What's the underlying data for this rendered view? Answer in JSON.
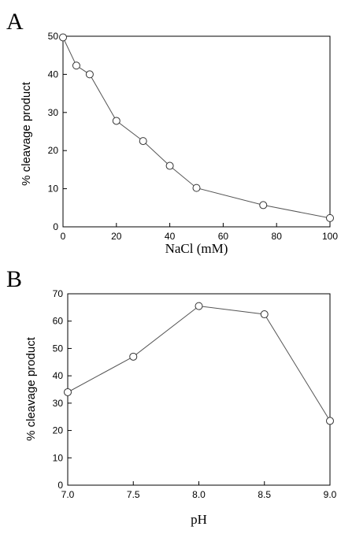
{
  "chart_data": [
    {
      "panel": "A",
      "type": "line",
      "xlabel": "NaCl (mM)",
      "ylabel": "% cleavage product",
      "xlim": [
        0,
        100
      ],
      "ylim": [
        0,
        50
      ],
      "xticks": [
        0,
        20,
        40,
        60,
        80,
        100
      ],
      "yticks": [
        0,
        10,
        20,
        30,
        40,
        50
      ],
      "xtick_labels": [
        "0",
        "20",
        "40",
        "60",
        "80",
        "100"
      ],
      "ytick_labels": [
        "0",
        "10",
        "20",
        "30",
        "40",
        "50"
      ],
      "grid": false,
      "marker": "open-circle",
      "x": [
        0,
        5,
        10,
        20,
        30,
        40,
        50,
        75,
        100
      ],
      "y": [
        49.7,
        42.3,
        40.0,
        27.8,
        22.5,
        16.0,
        10.2,
        5.7,
        2.3
      ]
    },
    {
      "panel": "B",
      "type": "line",
      "xlabel": "pH",
      "ylabel": "% cleavage product",
      "xlim": [
        7.0,
        9.0
      ],
      "ylim": [
        0,
        70
      ],
      "xticks": [
        7.0,
        7.5,
        8.0,
        8.5,
        9.0
      ],
      "yticks": [
        0,
        10,
        20,
        30,
        40,
        50,
        60,
        70
      ],
      "xtick_labels": [
        "7.0",
        "7.5",
        "8.0",
        "8.5",
        "9.0"
      ],
      "ytick_labels": [
        "0",
        "10",
        "20",
        "30",
        "40",
        "50",
        "60",
        "70"
      ],
      "grid": false,
      "marker": "open-circle",
      "x": [
        7.0,
        7.5,
        8.0,
        8.5,
        9.0
      ],
      "y": [
        34.0,
        47.0,
        65.5,
        62.5,
        23.5
      ]
    }
  ]
}
